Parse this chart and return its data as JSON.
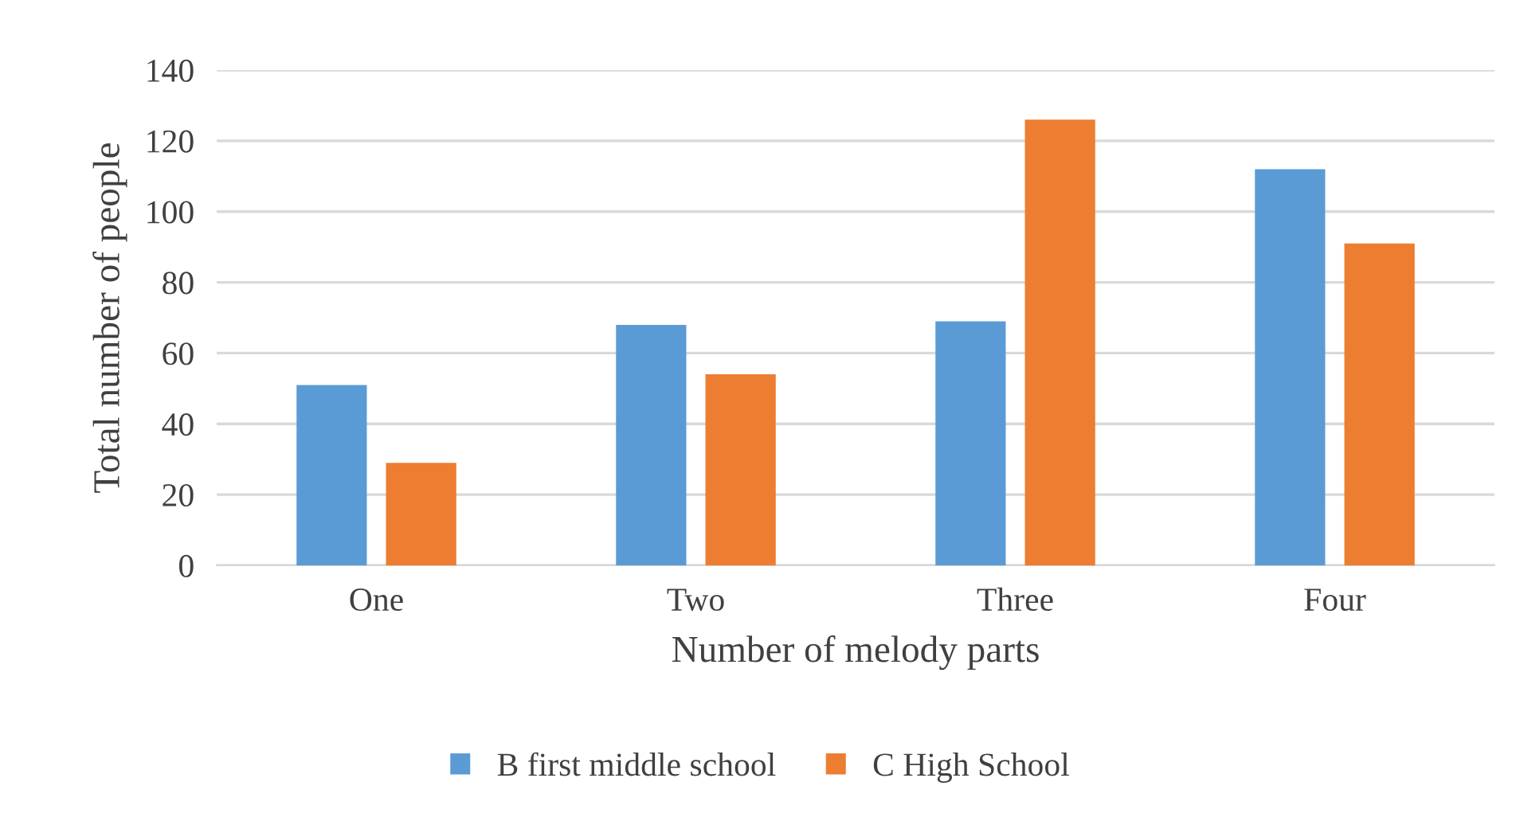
{
  "chart_data": {
    "type": "bar",
    "xlabel": "Number of melody parts",
    "ylabel": "Total number of people",
    "categories": [
      "One",
      "Two",
      "Three",
      "Four"
    ],
    "series": [
      {
        "name": "B first middle school",
        "color": "#5b9bd5",
        "values": [
          51,
          68,
          69,
          112
        ]
      },
      {
        "name": "C High School",
        "color": "#ed7d31",
        "values": [
          29,
          54,
          126,
          91
        ]
      }
    ],
    "ylim": [
      0,
      140
    ],
    "yticks": [
      0,
      20,
      40,
      60,
      80,
      100,
      120,
      140
    ],
    "grid": "y",
    "legend": "bottom"
  }
}
